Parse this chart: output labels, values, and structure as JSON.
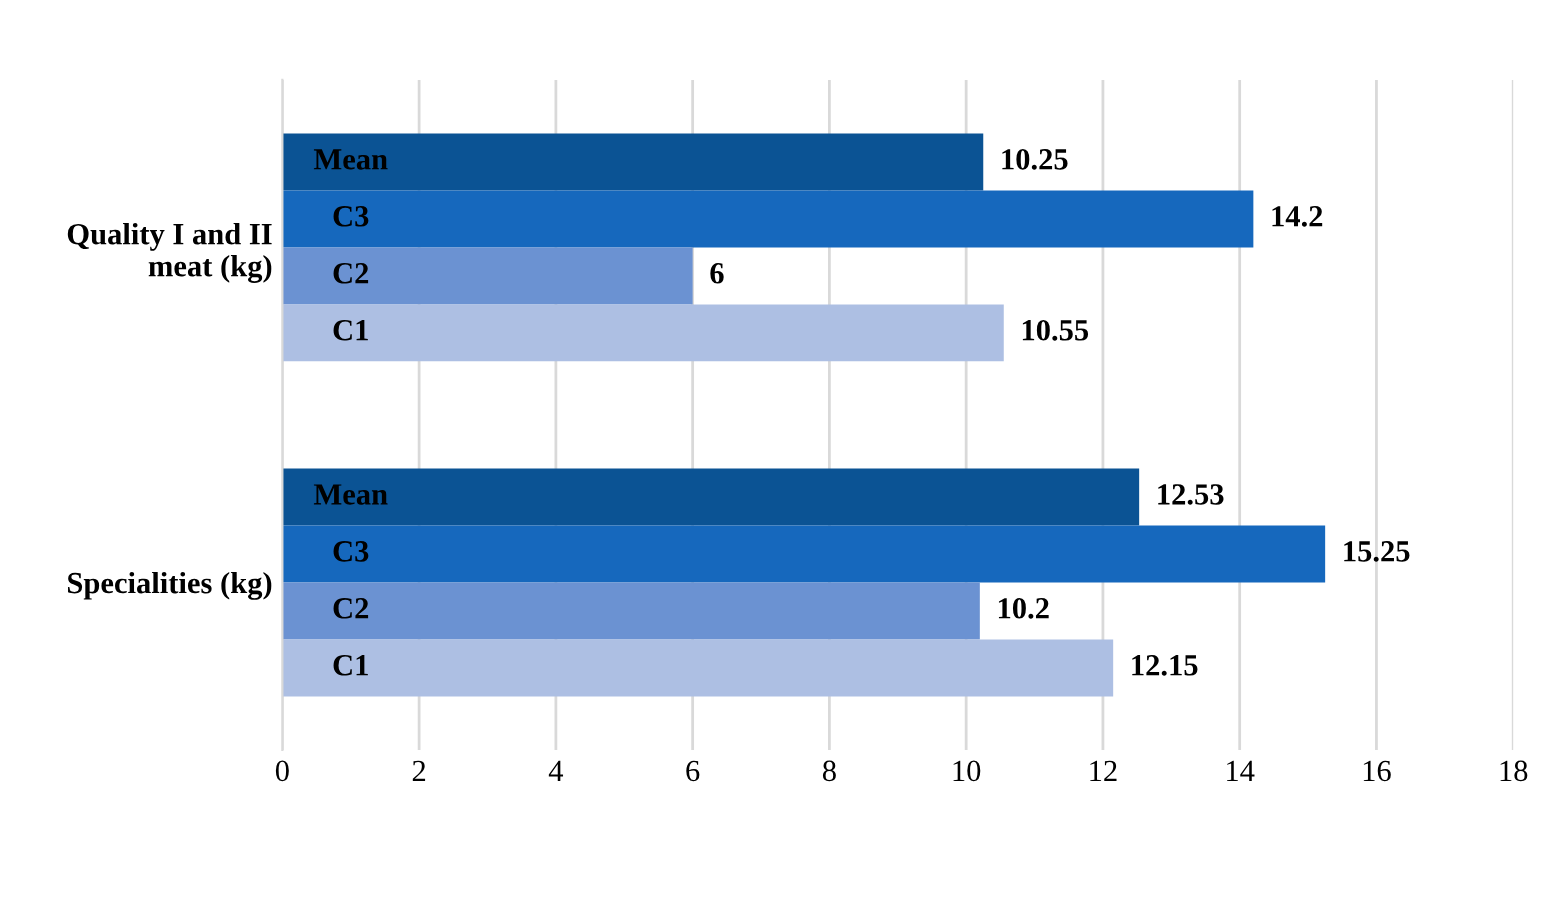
{
  "chart_data": {
    "type": "bar",
    "orientation": "horizontal",
    "categories": [
      "Quality I and II meat (kg)",
      "Specialities (kg)"
    ],
    "series": [
      {
        "name": "Mean",
        "color": "#0b5394",
        "values": [
          10.25,
          12.53
        ]
      },
      {
        "name": "C3",
        "color": "#1668bd",
        "values": [
          14.2,
          15.25
        ]
      },
      {
        "name": "C2",
        "color": "#6b92d2",
        "values": [
          6,
          10.2
        ]
      },
      {
        "name": "C1",
        "color": "#adbfe3",
        "values": [
          10.55,
          12.15
        ]
      }
    ],
    "xlim": [
      0,
      18
    ],
    "xticks": [
      0,
      2,
      4,
      6,
      8,
      10,
      12,
      14,
      16,
      18
    ],
    "grid": "x",
    "data_labels": true,
    "legend": false
  }
}
